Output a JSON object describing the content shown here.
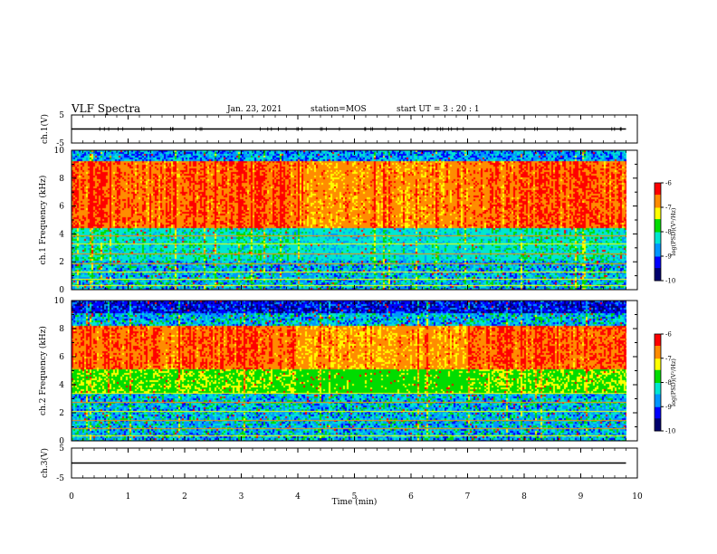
{
  "header": {
    "title": "VLF Spectra",
    "date": "Jan. 23, 2021",
    "station": "station=MOS",
    "start": "start  UT =   3 : 20 : 1"
  },
  "colors": {
    "spectrum_scale": [
      "#00006e",
      "#0000ff",
      "#0096ff",
      "#00e6d2",
      "#00dc00",
      "#ffff00",
      "#ff8c00",
      "#ff0000",
      "#ffffff"
    ],
    "frame": "#000000",
    "background": "#ffffff"
  },
  "chart_data": [
    {
      "type": "line",
      "panel": "ch.1 waveform",
      "ylabel": "ch.1(V)",
      "ylim": [
        -5,
        5
      ],
      "yticks": [
        "5",
        "-5"
      ],
      "xlim": [
        0,
        10
      ],
      "series": [
        {
          "x": [
            0,
            9.8
          ],
          "y": [
            0,
            0
          ]
        }
      ]
    },
    {
      "type": "heatmap",
      "panel": "ch.1 spectrogram",
      "ylabel": "ch.1 Frequency (kHz)",
      "ylim": [
        0,
        10
      ],
      "yticks": [
        "0",
        "2",
        "4",
        "6",
        "8",
        "10"
      ],
      "xlim": [
        0,
        10
      ],
      "data_end_min": 9.8,
      "colorbar": {
        "label": "log(PSD)(V²/Hz)",
        "range": [
          -10,
          -6
        ],
        "ticks": [
          "-6",
          "-7",
          "-8",
          "-9",
          "-10"
        ]
      }
    },
    {
      "type": "heatmap",
      "panel": "ch.2 spectrogram",
      "ylabel": "ch.2 Frequency (kHz)",
      "ylim": [
        0,
        10
      ],
      "yticks": [
        "0",
        "2",
        "4",
        "6",
        "8",
        "10"
      ],
      "xlim": [
        0,
        10
      ],
      "data_end_min": 9.8,
      "colorbar": {
        "label": "log(PSD)(V²/Hz)",
        "range": [
          -10,
          -6
        ],
        "ticks": [
          "-6",
          "-7",
          "-8",
          "-9",
          "-10"
        ]
      }
    },
    {
      "type": "line",
      "panel": "ch.3 waveform",
      "ylabel": "ch.3(V)",
      "ylim": [
        -5,
        5
      ],
      "yticks": [
        "5",
        "-5"
      ],
      "xlim": [
        0,
        10
      ],
      "series": [
        {
          "x": [
            0,
            9.8
          ],
          "y": [
            0,
            0
          ]
        }
      ]
    }
  ],
  "x_axis": {
    "label": "Time (min)",
    "ticks": [
      "0",
      "1",
      "2",
      "3",
      "4",
      "5",
      "6",
      "7",
      "8",
      "9",
      "10"
    ]
  }
}
